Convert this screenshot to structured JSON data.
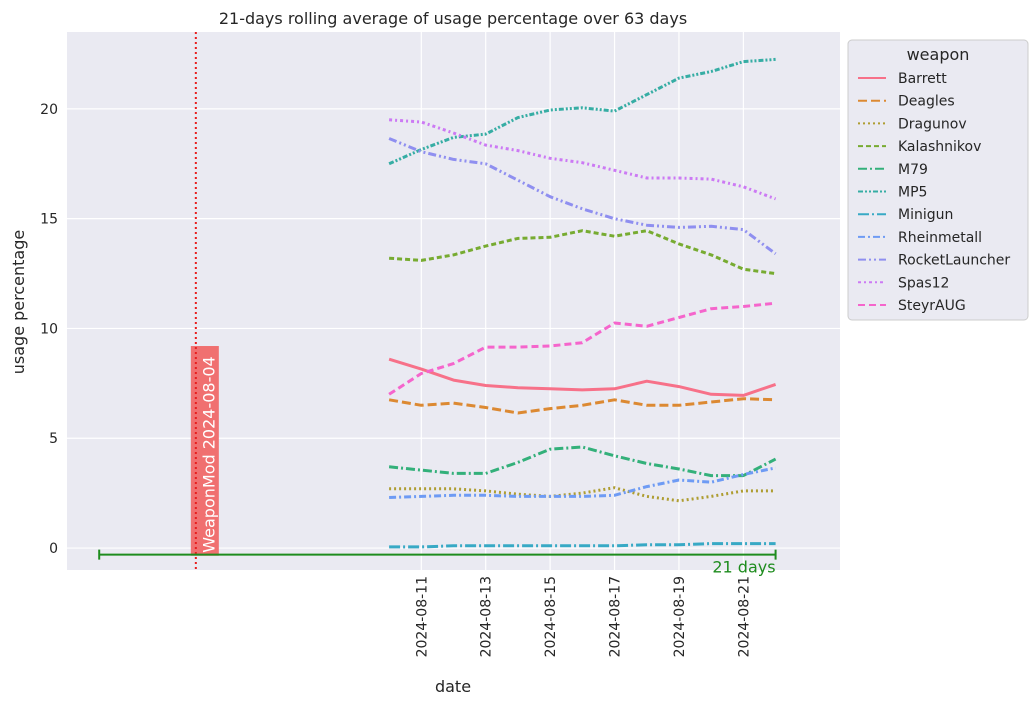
{
  "chart_data": {
    "type": "line",
    "title": "21-days rolling average of usage percentage over 63 days",
    "xlabel": "date",
    "ylabel": "usage percentage",
    "xlim": [
      "2024-07-31",
      "2024-08-24"
    ],
    "ylim": [
      -1,
      23.5
    ],
    "grid": true,
    "legend_title": "weapon",
    "legend_position": "upper-right-outside",
    "x_ticks": [
      "2024-08-11",
      "2024-08-13",
      "2024-08-15",
      "2024-08-17",
      "2024-08-19",
      "2024-08-21"
    ],
    "y_ticks": [
      0,
      5,
      10,
      15,
      20
    ],
    "y_tick_labels": [
      "0",
      "5",
      "10",
      "15",
      "20"
    ],
    "x": [
      "2024-08-10",
      "2024-08-11",
      "2024-08-12",
      "2024-08-13",
      "2024-08-14",
      "2024-08-15",
      "2024-08-16",
      "2024-08-17",
      "2024-08-18",
      "2024-08-19",
      "2024-08-20",
      "2024-08-21",
      "2024-08-22"
    ],
    "series": [
      {
        "name": "Barrett",
        "color": "#f77189",
        "dash": "solid",
        "values": [
          8.6,
          8.15,
          7.65,
          7.4,
          7.3,
          7.25,
          7.2,
          7.25,
          7.6,
          7.35,
          7.0,
          6.95,
          7.45
        ]
      },
      {
        "name": "Deagles",
        "color": "#dc8932",
        "dash": "dashed",
        "values": [
          6.75,
          6.5,
          6.6,
          6.4,
          6.15,
          6.35,
          6.5,
          6.75,
          6.5,
          6.5,
          6.65,
          6.8,
          6.75
        ]
      },
      {
        "name": "Dragunov",
        "color": "#ae9d31",
        "dash": "dotted",
        "values": [
          2.7,
          2.7,
          2.7,
          2.6,
          2.45,
          2.35,
          2.5,
          2.75,
          2.35,
          2.15,
          2.35,
          2.6,
          2.6
        ]
      },
      {
        "name": "Kalashnikov",
        "color": "#77ab31",
        "dash": "densedash",
        "values": [
          13.2,
          13.1,
          13.35,
          13.75,
          14.1,
          14.15,
          14.45,
          14.2,
          14.45,
          13.85,
          13.35,
          12.7,
          12.5
        ]
      },
      {
        "name": "M79",
        "color": "#33b07a",
        "dash": "dashdot",
        "values": [
          3.7,
          3.55,
          3.4,
          3.4,
          3.9,
          4.5,
          4.6,
          4.2,
          3.85,
          3.6,
          3.3,
          3.3,
          4.05
        ]
      },
      {
        "name": "MP5",
        "color": "#36ada4",
        "dash": "dashdotdot",
        "values": [
          17.5,
          18.15,
          18.7,
          18.85,
          19.6,
          19.95,
          20.05,
          19.9,
          20.65,
          21.4,
          21.7,
          22.15,
          22.25
        ]
      },
      {
        "name": "Minigun",
        "color": "#38a9c5",
        "dash": "longdashdot",
        "values": [
          0.05,
          0.05,
          0.1,
          0.1,
          0.1,
          0.1,
          0.1,
          0.1,
          0.15,
          0.15,
          0.2,
          0.2,
          0.2
        ]
      },
      {
        "name": "Rheinmetall",
        "color": "#6e9bf4",
        "dash": "dashdot2",
        "values": [
          2.3,
          2.35,
          2.4,
          2.4,
          2.35,
          2.35,
          2.35,
          2.4,
          2.8,
          3.1,
          3.0,
          3.35,
          3.65
        ]
      },
      {
        "name": "RocketLauncher",
        "color": "#8f8ff0",
        "dash": "dashdotdot2",
        "values": [
          18.65,
          18.05,
          17.7,
          17.5,
          16.75,
          16.0,
          15.45,
          15.0,
          14.7,
          14.6,
          14.65,
          14.5,
          13.4
        ]
      },
      {
        "name": "Spas12",
        "color": "#cc7af4",
        "dash": "dotdash",
        "values": [
          19.5,
          19.4,
          18.9,
          18.35,
          18.1,
          17.75,
          17.55,
          17.2,
          16.85,
          16.85,
          16.8,
          16.45,
          15.9
        ]
      },
      {
        "name": "SteyrAUG",
        "color": "#f565cc",
        "dash": "mediumdash",
        "values": [
          7.0,
          7.95,
          8.4,
          9.15,
          9.15,
          9.2,
          9.35,
          10.25,
          10.1,
          10.5,
          10.9,
          11.0,
          11.15
        ]
      }
    ],
    "annotations": [
      {
        "kind": "vline",
        "label": "WeaponMod 2024-08-04",
        "x": "2024-08-04",
        "color": "#e81e1e",
        "box_color": "#f07070",
        "box_top": 9.2
      },
      {
        "kind": "span",
        "label": "21 days",
        "x_start": "2024-08-01",
        "x_end": "2024-08-22",
        "y": -0.3,
        "color": "#1e8c1e"
      }
    ]
  }
}
